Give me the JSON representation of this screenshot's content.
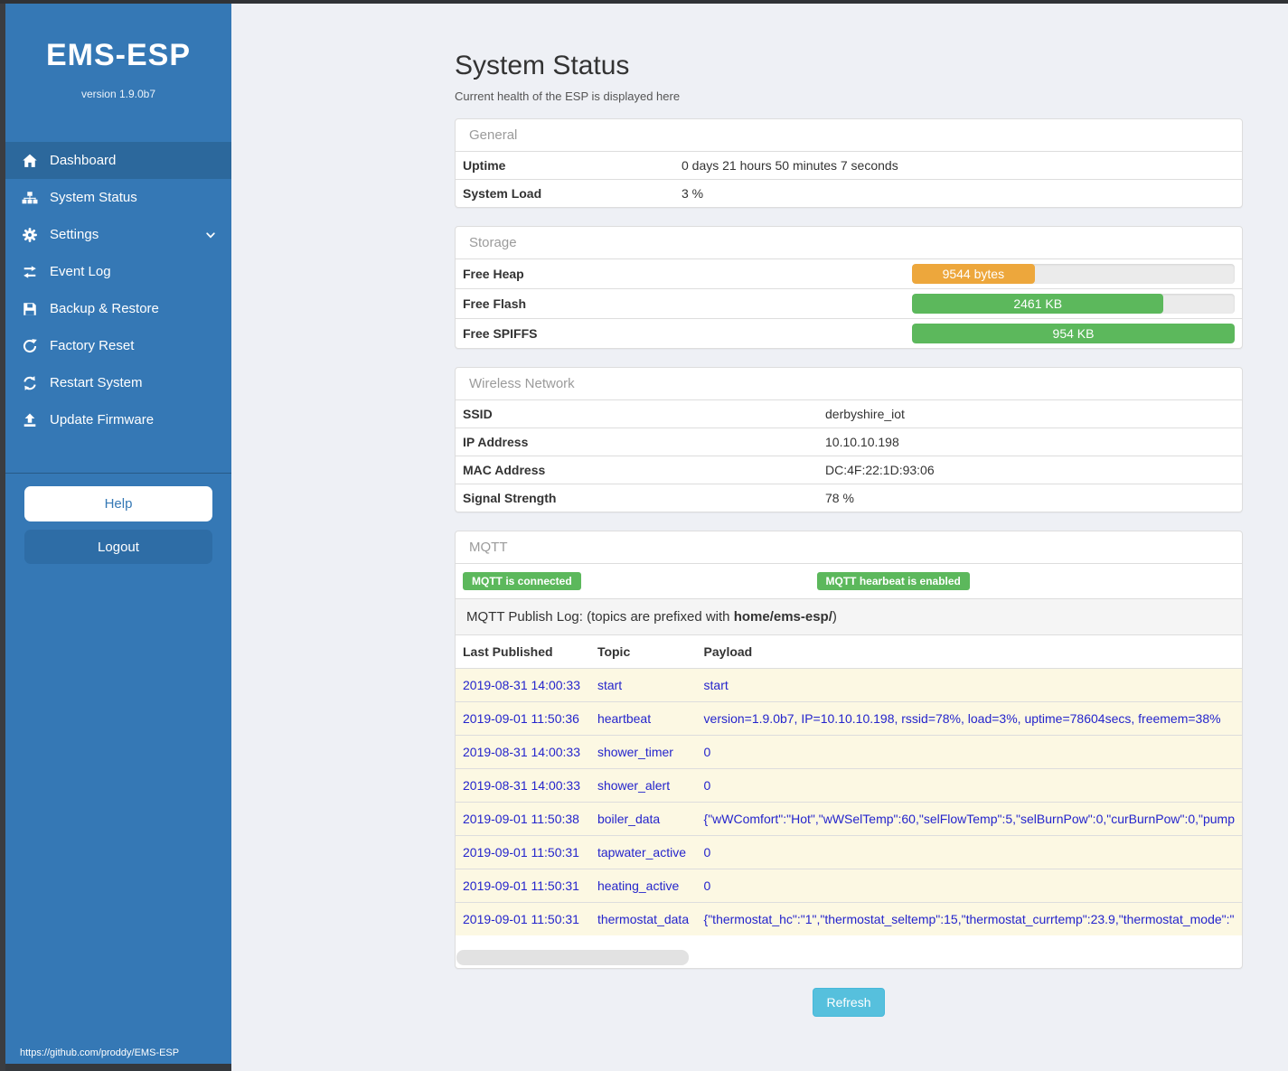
{
  "sidebar": {
    "title": "EMS-ESP",
    "version": "version 1.9.0b7",
    "items": [
      {
        "label": "Dashboard",
        "icon": "home-icon",
        "active": true,
        "chevron": false
      },
      {
        "label": "System Status",
        "icon": "sitemap-icon",
        "active": false,
        "chevron": false
      },
      {
        "label": "Settings",
        "icon": "gear-icon",
        "active": false,
        "chevron": true
      },
      {
        "label": "Event Log",
        "icon": "exchange-icon",
        "active": false,
        "chevron": false
      },
      {
        "label": "Backup & Restore",
        "icon": "save-icon",
        "active": false,
        "chevron": false
      },
      {
        "label": "Factory Reset",
        "icon": "redo-icon",
        "active": false,
        "chevron": false
      },
      {
        "label": "Restart System",
        "icon": "sync-icon",
        "active": false,
        "chevron": false
      },
      {
        "label": "Update Firmware",
        "icon": "upload-icon",
        "active": false,
        "chevron": false
      }
    ],
    "help_label": "Help",
    "logout_label": "Logout",
    "footer_link": "https://github.com/proddy/EMS-ESP"
  },
  "header": {
    "title": "System Status",
    "subtitle": "Current health of the ESP is displayed here"
  },
  "panels": {
    "general": {
      "title": "General",
      "rows": [
        {
          "label": "Uptime",
          "value": "0 days 21 hours 50 minutes 7 seconds"
        },
        {
          "label": "System Load",
          "value": "3 %"
        }
      ]
    },
    "storage": {
      "title": "Storage",
      "rows": [
        {
          "label": "Free Heap",
          "bar_label": "9544 bytes",
          "percent": 38,
          "color": "#eda73c"
        },
        {
          "label": "Free Flash",
          "bar_label": "2461 KB",
          "percent": 78,
          "color": "#5cb85c"
        },
        {
          "label": "Free SPIFFS",
          "bar_label": "954 KB",
          "percent": 100,
          "color": "#5cb85c"
        }
      ]
    },
    "wireless": {
      "title": "Wireless Network",
      "rows": [
        {
          "label": "SSID",
          "value": "derbyshire_iot"
        },
        {
          "label": "IP Address",
          "value": "10.10.10.198"
        },
        {
          "label": "MAC Address",
          "value": "DC:4F:22:1D:93:06"
        },
        {
          "label": "Signal Strength",
          "value": "78 %"
        }
      ]
    },
    "mqtt": {
      "title": "MQTT",
      "badges": [
        "MQTT is connected",
        "MQTT hearbeat is enabled"
      ],
      "badge_color": "#5cb85c",
      "publish_log": {
        "prefix": "MQTT Publish Log: (topics are prefixed with ",
        "bold": "home/ems-esp/",
        "suffix": ")"
      },
      "columns": [
        "Last Published",
        "Topic",
        "Payload"
      ],
      "rows": [
        {
          "published": "2019-08-31 14:00:33",
          "topic": "start",
          "payload": "start"
        },
        {
          "published": "2019-09-01 11:50:36",
          "topic": "heartbeat",
          "payload": "version=1.9.0b7, IP=10.10.10.198, rssid=78%, load=3%, uptime=78604secs, freemem=38%"
        },
        {
          "published": "2019-08-31 14:00:33",
          "topic": "shower_timer",
          "payload": "0"
        },
        {
          "published": "2019-08-31 14:00:33",
          "topic": "shower_alert",
          "payload": "0"
        },
        {
          "published": "2019-09-01 11:50:38",
          "topic": "boiler_data",
          "payload": "{\"wWComfort\":\"Hot\",\"wWSelTemp\":60,\"selFlowTemp\":5,\"selBurnPow\":0,\"curBurnPow\":0,\"pump"
        },
        {
          "published": "2019-09-01 11:50:31",
          "topic": "tapwater_active",
          "payload": "0"
        },
        {
          "published": "2019-09-01 11:50:31",
          "topic": "heating_active",
          "payload": "0"
        },
        {
          "published": "2019-09-01 11:50:31",
          "topic": "thermostat_data",
          "payload": "{\"thermostat_hc\":\"1\",\"thermostat_seltemp\":15,\"thermostat_currtemp\":23.9,\"thermostat_mode\":\""
        }
      ]
    }
  },
  "actions": {
    "refresh_label": "Refresh"
  },
  "colors": {
    "sidebar": "#3578b5",
    "sidebar_active": "#2c689c",
    "green": "#5cb85c",
    "orange": "#eda73c",
    "info_button": "#56c0dd",
    "log_row_bg": "#fcf8e3",
    "log_row_text": "#2424cc"
  }
}
